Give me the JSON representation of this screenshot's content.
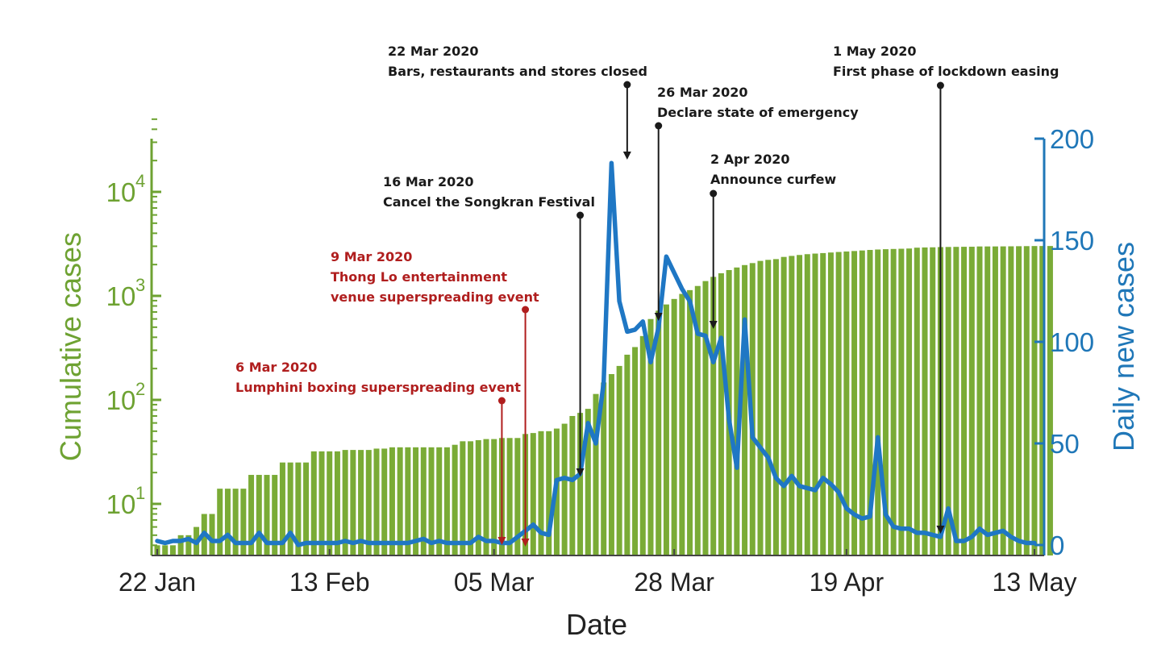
{
  "chart_data": {
    "type": "bar+line",
    "xlabel": "Date",
    "ylabel_left": "Cumulative cases",
    "ylabel_right": "Daily new cases",
    "left_axis": {
      "scale": "log",
      "tick_exponents": [
        1,
        2,
        3,
        4
      ],
      "tick_base": "10"
    },
    "right_axis": {
      "ylim": [
        0,
        200
      ],
      "ticks": [
        "0",
        "50",
        "100",
        "150",
        "200"
      ]
    },
    "x_ticks": [
      {
        "label": "22 Jan",
        "day": 0
      },
      {
        "label": "13 Feb",
        "day": 22
      },
      {
        "label": "05 Mar",
        "day": 43
      },
      {
        "label": "28 Mar",
        "day": 66
      },
      {
        "label": "19 Apr",
        "day": 88
      },
      {
        "label": "13 May",
        "day": 112
      }
    ],
    "dates_start": "22 Jan 2020",
    "cumulative_cases": [
      4,
      4,
      4,
      5,
      5,
      6,
      8,
      8,
      14,
      14,
      14,
      14,
      19,
      19,
      19,
      19,
      25,
      25,
      25,
      25,
      32,
      32,
      32,
      32,
      33,
      33,
      33,
      33,
      34,
      34,
      35,
      35,
      35,
      35,
      35,
      35,
      35,
      35,
      37,
      40,
      40,
      41,
      42,
      42,
      43,
      43,
      43,
      47,
      48,
      50,
      50,
      53,
      59,
      70,
      75,
      82,
      114,
      147,
      177,
      212,
      272,
      322,
      411,
      599,
      721,
      827,
      934,
      1045,
      1136,
      1245,
      1388,
      1524,
      1651,
      1771,
      1875,
      1978,
      2067,
      2169,
      2220,
      2258,
      2369,
      2423,
      2473,
      2518,
      2551,
      2579,
      2613,
      2643,
      2672,
      2700,
      2733,
      2765,
      2792,
      2811,
      2826,
      2839,
      2854,
      2907,
      2922,
      2931,
      2947,
      2954,
      2960,
      2966,
      2969,
      2987,
      2988,
      2989,
      2992,
      2996,
      3004,
      3009,
      3015,
      3017,
      3017
    ],
    "daily_new_cases": [
      2,
      1,
      2,
      2,
      3,
      1,
      6,
      2,
      2,
      5,
      1,
      1,
      1,
      6,
      1,
      1,
      1,
      6,
      0,
      1,
      1,
      1,
      1,
      1,
      2,
      1,
      2,
      1,
      1,
      1,
      1,
      1,
      1,
      2,
      3,
      1,
      2,
      1,
      1,
      1,
      1,
      4,
      2,
      2,
      1,
      1,
      4,
      7,
      10,
      6,
      5,
      32,
      33,
      32,
      35,
      60,
      50,
      80,
      188,
      120,
      105,
      106,
      110,
      90,
      107,
      142,
      134,
      126,
      120,
      104,
      103,
      90,
      102,
      62,
      38,
      111,
      53,
      48,
      43,
      33,
      29,
      34,
      29,
      28,
      27,
      33,
      30,
      26,
      18,
      15,
      13,
      14,
      53,
      15,
      9,
      8,
      8,
      6,
      6,
      5,
      4,
      18,
      2,
      2,
      4,
      8,
      5,
      6,
      7,
      4,
      2,
      1,
      1
    ]
  },
  "annotations": [
    {
      "date": "22 Mar 2020",
      "text": "Bars, restaurants and stores closed",
      "color": "#1a1a1a",
      "day": 60
    },
    {
      "date": "26 Mar 2020",
      "text": "Declare state of emergency",
      "color": "#1a1a1a",
      "day": 64
    },
    {
      "date": "16 Mar 2020",
      "text": "Cancel the Songkran Festival",
      "color": "#1a1a1a",
      "day": 54
    },
    {
      "date": "2 Apr 2020",
      "text": "Announce curfew",
      "color": "#1a1a1a",
      "day": 71
    },
    {
      "date": "1 May 2020",
      "text": "First phase of lockdown easing",
      "color": "#1a1a1a",
      "day": 100
    },
    {
      "date": "9 Mar 2020",
      "text": [
        "Thong Lo entertainment",
        "venue superspreading event"
      ],
      "color": "#b01e1e",
      "day": 47
    },
    {
      "date": "6 Mar 2020",
      "text": "Lumphini boxing superspreading event",
      "color": "#b01e1e",
      "day": 44
    }
  ],
  "colors": {
    "bars": "#7aab36",
    "line": "#1f77c4",
    "left_axis": "#6ea232",
    "right_axis": "#1f77b8",
    "red_ann": "#b01e1e",
    "black_ann": "#1a1a1a"
  }
}
